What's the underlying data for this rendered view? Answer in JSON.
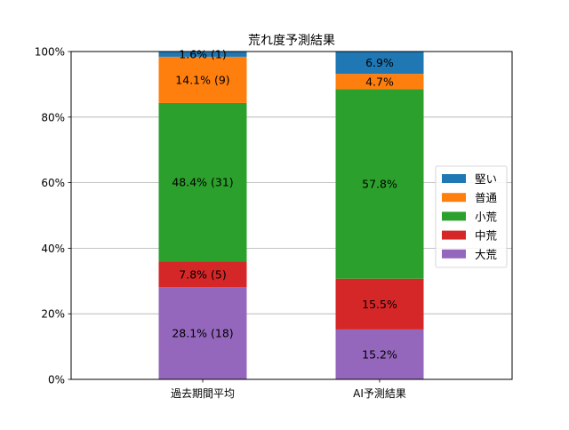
{
  "chart_data": {
    "type": "bar",
    "stacked": true,
    "title": "荒れ度予測結果",
    "xlabel": "",
    "ylabel": "",
    "ylim": [
      0,
      100
    ],
    "y_tick_labels": [
      "0%",
      "20%",
      "40%",
      "60%",
      "80%",
      "100%"
    ],
    "y_tick_values": [
      0,
      20,
      40,
      60,
      80,
      100
    ],
    "grid": "horizontal",
    "legend_position": "right",
    "categories": [
      "過去期間平均",
      "AI予測結果"
    ],
    "series": [
      {
        "name": "大荒",
        "color": "#9467bd",
        "values": [
          28.1,
          15.2
        ],
        "labels": [
          "28.1% (18)",
          "15.2%"
        ]
      },
      {
        "name": "中荒",
        "color": "#d62728",
        "values": [
          7.8,
          15.5
        ],
        "labels": [
          "7.8% (5)",
          "15.5%"
        ]
      },
      {
        "name": "小荒",
        "color": "#2ca02c",
        "values": [
          48.4,
          57.8
        ],
        "labels": [
          "48.4% (31)",
          "57.8%"
        ]
      },
      {
        "name": "普通",
        "color": "#ff7f0e",
        "values": [
          14.1,
          4.7
        ],
        "labels": [
          "14.1% (9)",
          "4.7%"
        ]
      },
      {
        "name": "堅い",
        "color": "#1f77b4",
        "values": [
          1.6,
          6.9
        ],
        "labels": [
          "1.6% (1)",
          "6.9%"
        ]
      }
    ],
    "legend_order": [
      "堅い",
      "普通",
      "小荒",
      "中荒",
      "大荒"
    ]
  }
}
